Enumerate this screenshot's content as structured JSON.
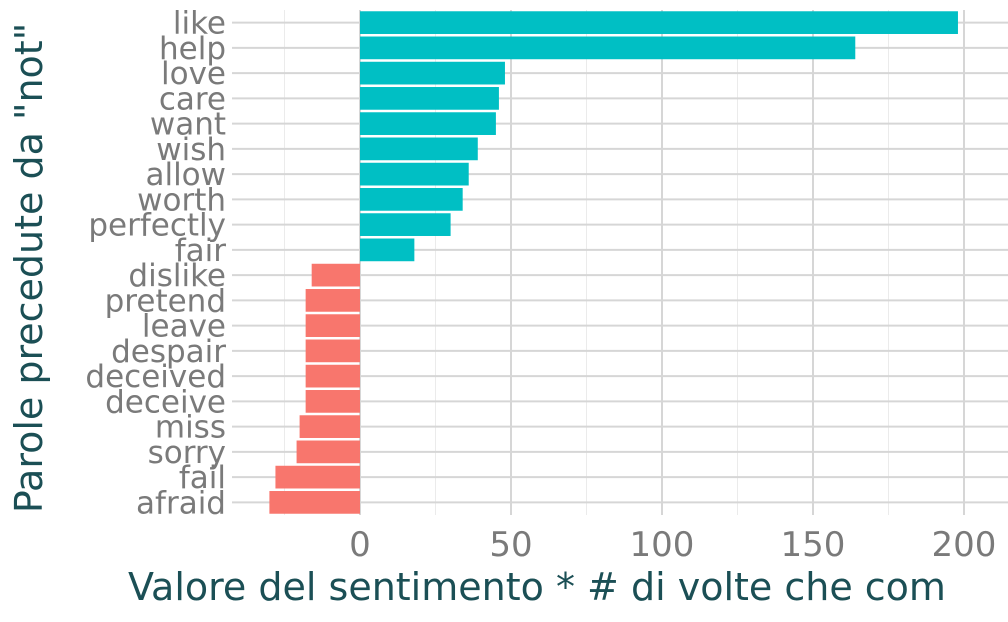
{
  "chart_data": {
    "type": "bar",
    "orientation": "horizontal",
    "xlabel": "Valore del sentimento * # di volte che com",
    "ylabel": "Parole precedute da \"not\"",
    "xlim": [
      -45,
      213
    ],
    "x_ticks": [
      0,
      50,
      100,
      150,
      200
    ],
    "x_tick_labels": [
      "0",
      "50",
      "100",
      "150",
      "200"
    ],
    "grid": true,
    "colors": {
      "positive": "#00BFC4",
      "negative": "#F8766D"
    },
    "categories": [
      "like",
      "help",
      "love",
      "care",
      "want",
      "wish",
      "allow",
      "worth",
      "perfectly",
      "fair",
      "dislike",
      "pretend",
      "leave",
      "despair",
      "deceived",
      "deceive",
      "miss",
      "sorry",
      "fail",
      "afraid"
    ],
    "values": [
      198,
      164,
      48,
      46,
      45,
      39,
      36,
      34,
      30,
      18,
      -16,
      -18,
      -18,
      -18,
      -18,
      -18,
      -20,
      -21,
      -28,
      -30
    ]
  }
}
